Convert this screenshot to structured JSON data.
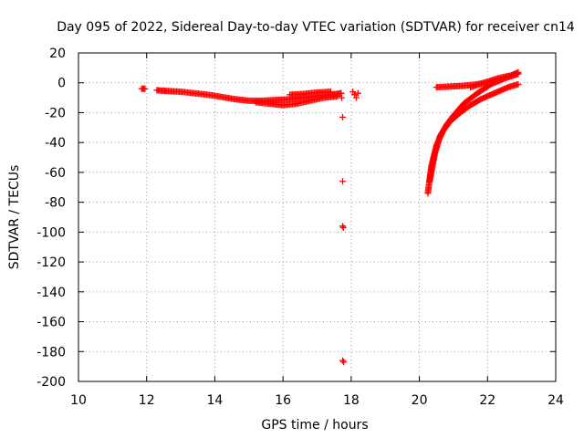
{
  "chart_data": {
    "type": "scatter",
    "title": "Day 095 of 2022, Sidereal Day-to-day VTEC variation (SDTVAR) for receiver cn14",
    "xlabel": "GPS time / hours",
    "ylabel": "SDTVAR / TECUs",
    "xlim": [
      10,
      24
    ],
    "ylim": [
      -200,
      20
    ],
    "xticks": [
      10,
      12,
      14,
      16,
      18,
      20,
      22,
      24
    ],
    "yticks": [
      -200,
      -180,
      -160,
      -140,
      -120,
      -100,
      -80,
      -60,
      -40,
      -20,
      0,
      20
    ],
    "grid": true,
    "marker": "plus",
    "color": "#ff0000",
    "segments": [
      {
        "x": [
          11.85,
          11.95
        ],
        "y": [
          -4,
          -4
        ]
      },
      {
        "x": [
          12.3,
          12.6,
          13.0,
          13.4,
          13.8,
          14.2,
          14.6,
          15.0,
          15.4,
          15.8,
          16.2,
          16.6,
          17.0,
          17.4,
          17.7
        ],
        "y": [
          -5,
          -5.5,
          -6,
          -7,
          -8,
          -9.5,
          -11,
          -12,
          -12,
          -11.5,
          -11,
          -10,
          -9,
          -8,
          -7
        ]
      },
      {
        "x": [
          15.2,
          15.6,
          16.0,
          16.4,
          16.8,
          17.2,
          17.6
        ],
        "y": [
          -13,
          -14,
          -15,
          -14,
          -12,
          -10,
          -9
        ]
      },
      {
        "x": [
          16.2,
          16.6,
          17.0,
          17.4
        ],
        "y": [
          -8,
          -7.5,
          -6.5,
          -6
        ]
      },
      {
        "x": [
          20.25,
          20.35,
          20.5,
          20.7,
          20.9,
          21.2,
          21.5,
          21.8,
          22.2,
          22.6,
          22.9
        ],
        "y": [
          -74,
          -56,
          -42,
          -32,
          -26,
          -20,
          -15,
          -11,
          -7,
          -3,
          -1
        ]
      },
      {
        "x": [
          20.3,
          20.45,
          20.6,
          20.8,
          21.0,
          21.3,
          21.7,
          22.1,
          22.5,
          22.9
        ],
        "y": [
          -66,
          -48,
          -36,
          -28,
          -22,
          -14,
          -7,
          -1,
          3,
          6
        ]
      },
      {
        "x": [
          20.5,
          20.9,
          21.3,
          21.7,
          22.1,
          22.5,
          22.9
        ],
        "y": [
          -3,
          -2.5,
          -2,
          -1,
          1,
          3,
          6
        ]
      },
      {
        "x": [
          21.5,
          21.9,
          22.3,
          22.7,
          22.9
        ],
        "y": [
          -3,
          0,
          3,
          5,
          7
        ]
      }
    ],
    "points": [
      {
        "x": 17.7,
        "y": -7
      },
      {
        "x": 17.72,
        "y": -10
      },
      {
        "x": 17.75,
        "y": -23
      },
      {
        "x": 17.75,
        "y": -66
      },
      {
        "x": 17.75,
        "y": -96
      },
      {
        "x": 17.77,
        "y": -97
      },
      {
        "x": 17.75,
        "y": -186
      },
      {
        "x": 17.78,
        "y": -187
      },
      {
        "x": 18.05,
        "y": -6
      },
      {
        "x": 18.1,
        "y": -8
      },
      {
        "x": 18.15,
        "y": -10
      },
      {
        "x": 18.2,
        "y": -7
      }
    ]
  }
}
